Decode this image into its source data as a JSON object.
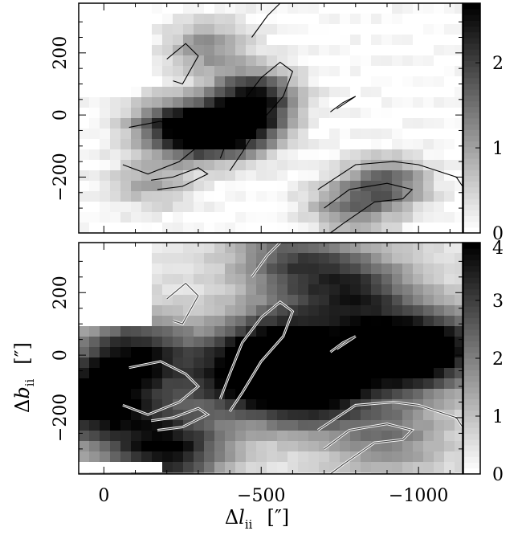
{
  "chart_data": [
    {
      "type": "heatmap",
      "panel": "top",
      "xlabel": "",
      "ylabel": "",
      "xlim": [
        80,
        -1140
      ],
      "ylim": [
        -380,
        360
      ],
      "y_ticks": [
        200,
        0,
        -200
      ],
      "y_tick_labels": [
        "200",
        "0",
        "−200"
      ],
      "colorbar": {
        "range": [
          0,
          2.7
        ],
        "ticks": [
          0,
          1,
          2
        ],
        "tick_labels": [
          "0",
          "1",
          "2"
        ]
      },
      "colormap": [
        "#ffffff",
        "#000000"
      ],
      "emission_features": [
        {
          "l": -430,
          "b": -40,
          "peak": 2.7
        },
        {
          "l": -300,
          "b": -60,
          "peak": 2.2
        },
        {
          "l": -480,
          "b": 60,
          "peak": 2.3
        },
        {
          "l": -200,
          "b": -30,
          "peak": 1.5
        },
        {
          "l": -330,
          "b": 220,
          "peak": 1.2
        },
        {
          "l": -900,
          "b": -220,
          "peak": 1.6
        },
        {
          "l": -780,
          "b": -300,
          "peak": 1.2
        },
        {
          "l": -150,
          "b": -220,
          "peak": 0.9
        }
      ],
      "blank_regions": [
        {
          "l_range": [
            80,
            -140
          ],
          "b_range": [
            360,
            100
          ]
        }
      ]
    },
    {
      "type": "heatmap",
      "panel": "bottom",
      "xlabel": "Δl ii   [″]",
      "ylabel": "Δb ii   [″]",
      "xlim": [
        80,
        -1140
      ],
      "ylim": [
        -380,
        360
      ],
      "x_ticks": [
        0,
        -500,
        -1000
      ],
      "x_tick_labels": [
        "0",
        "−500",
        "−1000"
      ],
      "y_ticks": [
        200,
        0,
        -200
      ],
      "y_tick_labels": [
        "200",
        "0",
        "−200"
      ],
      "colorbar": {
        "range": [
          0,
          4
        ],
        "ticks": [
          0,
          1,
          2,
          3,
          4
        ],
        "tick_labels": [
          "0",
          "1",
          "2",
          "3",
          "4"
        ]
      },
      "colormap": [
        "#ffffff",
        "#000000"
      ],
      "emission_features": [
        {
          "l": 40,
          "b": -150,
          "peak": 3.9
        },
        {
          "l": -100,
          "b": 0,
          "peak": 3.2
        },
        {
          "l": -200,
          "b": -300,
          "peak": 3.5
        },
        {
          "l": -560,
          "b": 20,
          "peak": 3.9
        },
        {
          "l": -650,
          "b": -110,
          "peak": 3.8
        },
        {
          "l": -900,
          "b": 0,
          "peak": 3.4
        },
        {
          "l": -1060,
          "b": 20,
          "peak": 3.0
        },
        {
          "l": -420,
          "b": -80,
          "peak": 2.5
        },
        {
          "l": -800,
          "b": 200,
          "peak": 2.6
        },
        {
          "l": -600,
          "b": 300,
          "peak": 2.2
        },
        {
          "l": -900,
          "b": -260,
          "peak": 1.6
        }
      ],
      "blank_regions": [
        {
          "l_range": [
            80,
            -140
          ],
          "b_range": [
            360,
            100
          ]
        },
        {
          "l_range": [
            80,
            -190
          ],
          "b_range": [
            -340,
            -380
          ]
        }
      ]
    }
  ]
}
